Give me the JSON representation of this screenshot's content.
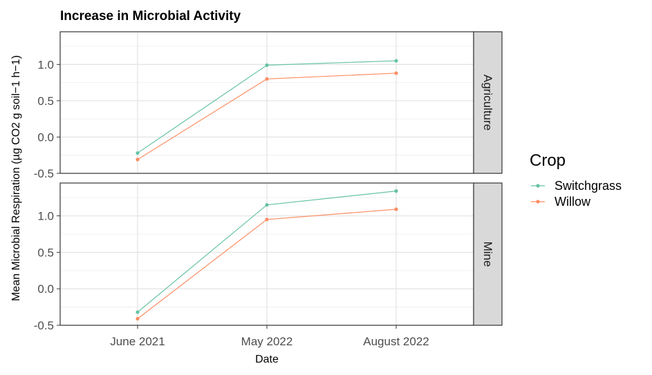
{
  "chart_data": {
    "type": "line",
    "title": "Increase in Microbial Activity",
    "xlabel": "Date",
    "ylabel": "Mean Microbial Respiration (µg CO2 g soil−1 h−1)",
    "categories": [
      "June 2021",
      "May 2022",
      "August 2022"
    ],
    "ylim": [
      -0.5,
      1.45
    ],
    "yticks": [
      "-0.5",
      "0.0",
      "0.5",
      "1.0"
    ],
    "grid": true,
    "legend": {
      "title": "Crop",
      "position": "right"
    },
    "facets": [
      {
        "label": "Agriculture",
        "series": [
          {
            "name": "Switchgrass",
            "values": [
              -0.22,
              0.99,
              1.05
            ]
          },
          {
            "name": "Willow",
            "values": [
              -0.31,
              0.8,
              0.88
            ]
          }
        ]
      },
      {
        "label": "Mine",
        "series": [
          {
            "name": "Switchgrass",
            "values": [
              -0.32,
              1.15,
              1.34
            ]
          },
          {
            "name": "Willow",
            "values": [
              -0.41,
              0.95,
              1.09
            ]
          }
        ]
      }
    ],
    "colors": {
      "Switchgrass": "#66c2a5",
      "Willow": "#fc8d62"
    }
  }
}
